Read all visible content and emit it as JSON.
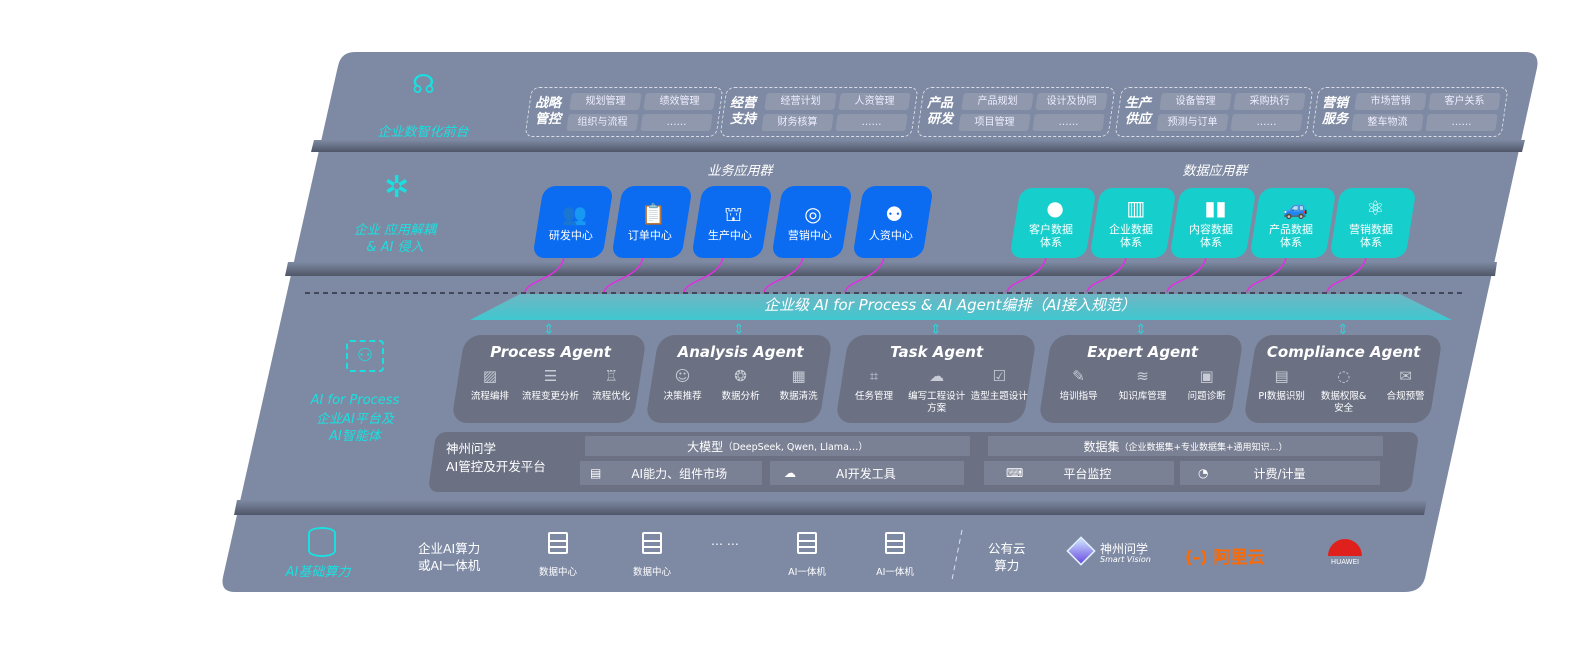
{
  "colors": {
    "panel": "#7e8aa3",
    "accent_cyan": "#19e0e0",
    "business_app": "#0b6cf2",
    "data_app": "#16cfcc",
    "link_arrow": "#e030e0",
    "aliyun": "#ff6a00",
    "huawei": "#e0201c"
  },
  "front": {
    "label": "企业数智化前台",
    "icon": "brain-icon",
    "groups": [
      {
        "title": "战略\n管控",
        "items": [
          "规划管理",
          "绩效管理",
          "组织与流程",
          "……"
        ]
      },
      {
        "title": "经营\n支持",
        "items": [
          "经营计划",
          "人资管理",
          "财务核算",
          "……"
        ]
      },
      {
        "title": "产品\n研发",
        "items": [
          "产品规划",
          "设计及协同",
          "项目管理",
          "……"
        ]
      },
      {
        "title": "生产\n供应",
        "items": [
          "设备管理",
          "采购执行",
          "预测与订单",
          "……"
        ]
      },
      {
        "title": "营销\n服务",
        "items": [
          "市场营销",
          "客户关系",
          "整车物流",
          "……"
        ]
      }
    ]
  },
  "apps": {
    "label": "企业 应用解耦\n& AI 侵入",
    "icon": "molecule-icon",
    "business_title": "业务应用群",
    "business": [
      {
        "label": "研发中心",
        "icon": "users-icon"
      },
      {
        "label": "订单中心",
        "icon": "clipboard-icon"
      },
      {
        "label": "生产中心",
        "icon": "factory-icon"
      },
      {
        "label": "营销中心",
        "icon": "target-icon"
      },
      {
        "label": "人资中心",
        "icon": "person-icon"
      }
    ],
    "data_title": "数据应用群",
    "data": [
      {
        "label": "客户数据\n体系",
        "icon": "user-icon"
      },
      {
        "label": "企业数据\n体系",
        "icon": "building-icon"
      },
      {
        "label": "内容数据\n体系",
        "icon": "books-icon"
      },
      {
        "label": "产品数据\n体系",
        "icon": "car-icon"
      },
      {
        "label": "营销数据\n体系",
        "icon": "atom-icon"
      }
    ]
  },
  "process": {
    "label_en": "AI for Process",
    "label_cn": "企业AI平台及\nAI智能体",
    "icon": "face-scan-icon",
    "banner": "企业级 AI for Process & AI Agent编排（AI接入规范）",
    "agents": [
      {
        "name": "Process Agent",
        "items": [
          "流程编排",
          "流程变更分析",
          "流程优化"
        ]
      },
      {
        "name": "Analysis Agent",
        "items": [
          "决策推荐",
          "数据分析",
          "数据清洗"
        ]
      },
      {
        "name": "Task Agent",
        "items": [
          "任务管理",
          "编写工程设计方案",
          "造型主题设计"
        ]
      },
      {
        "name": "Expert Agent",
        "items": [
          "培训指导",
          "知识库管理",
          "问题诊断"
        ]
      },
      {
        "name": "Compliance Agent",
        "items": [
          "PI数据识别",
          "数据权限&\n安全",
          "合规预警"
        ]
      }
    ],
    "platform": {
      "title": "神州问学\nAI管控及开发平台",
      "model": "大模型",
      "model_note": "（DeepSeek, Qwen, Llama…）",
      "dataset": "数据集",
      "dataset_note": "（企业数据集+专业数据集+通用知识…）",
      "market": "AI能力、组件市场",
      "devtools": "AI开发工具",
      "monitor": "平台监控",
      "billing": "计费/计量"
    }
  },
  "infra": {
    "label": "AI基础算力",
    "icon": "database-icon",
    "private": "企业AI算力\n或AI一体机",
    "servers": [
      "数据中心",
      "数据中心",
      "AI一体机",
      "AI一体机"
    ],
    "ellipsis": "… …",
    "public": "公有云\n算力",
    "vendors": {
      "smartvision_cn": "神州问学",
      "smartvision_en": "Smart Vision",
      "aliyun": "阿里云",
      "huawei": "HUAWEI"
    }
  }
}
